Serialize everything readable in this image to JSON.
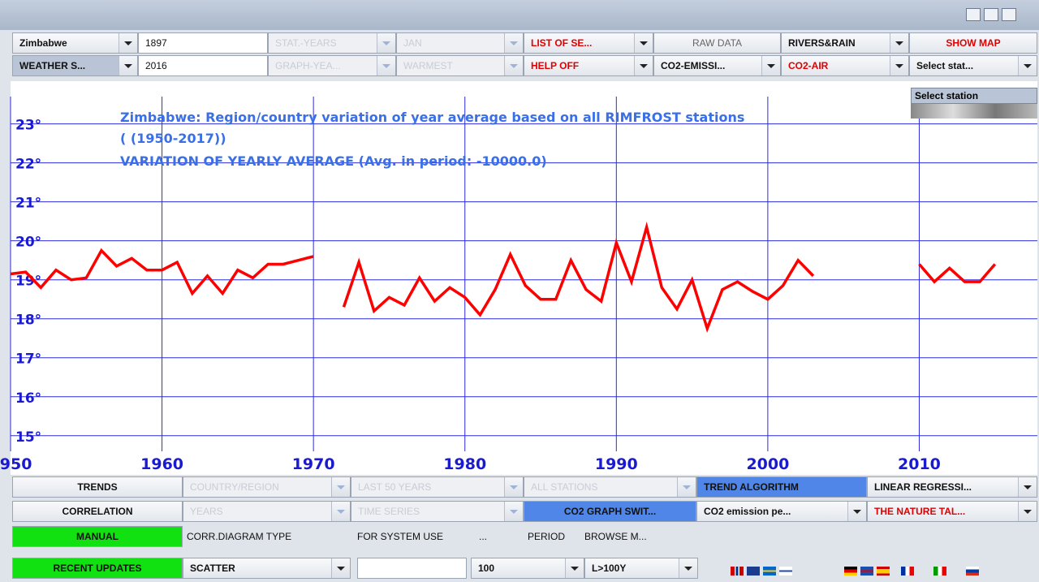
{
  "toolbar": {
    "rows": [
      [
        "Zimbabwe",
        "1897",
        "STAT.-YEARS",
        "JAN",
        "LIST OF SE...",
        "RAW DATA",
        "RIVERS&RAIN",
        "SHOW MAP"
      ],
      [
        "WEATHER S...",
        "2016",
        "GRAPH-YEA...",
        "WARMEST",
        "HELP OFF",
        "CO2-EMISSI...",
        "CO2-AIR",
        "Select stat..."
      ]
    ]
  },
  "popup": "Select station",
  "bottom_panel": {
    "rows": [
      [
        "TRENDS",
        "COUNTRY/REGION",
        "LAST 50 YEARS",
        "ALL STATIONS",
        "TREND ALGORITHM",
        "LINEAR REGRESSI..."
      ],
      [
        "CORRELATION",
        "YEARS",
        "TIME SERIES",
        "CO2 GRAPH SWIT...",
        "CO2 emission pe...",
        "THE NATURE TAL..."
      ],
      [
        "MANUAL",
        "CORR.DIAGRAM TYPE",
        "FOR SYSTEM USE",
        "...",
        "PERIOD",
        "BROWSE M..."
      ],
      [
        "RECENT UPDATES",
        "SCATTER",
        "100",
        "L>100Y"
      ]
    ]
  },
  "chart_data": {
    "type": "line",
    "title": "Zimbabwe: Region/country variation of year average based on all RIMFROST stations",
    "subtitle": "( (1950-2017))",
    "annotation": "VARIATION OF YEARLY AVERAGE (Avg. in period: -10000.0)",
    "x": [
      1950,
      1951,
      1952,
      1953,
      1954,
      1955,
      1956,
      1957,
      1958,
      1959,
      1960,
      1961,
      1962,
      1963,
      1964,
      1965,
      1966,
      1967,
      1968,
      1969,
      1970,
      1971,
      1972,
      1973,
      1974,
      1975,
      1976,
      1977,
      1978,
      1979,
      1980,
      1981,
      1982,
      1983,
      1984,
      1985,
      1986,
      1987,
      1988,
      1989,
      1990,
      1991,
      1992,
      1993,
      1994,
      1995,
      1996,
      1997,
      1998,
      1999,
      2000,
      2001,
      2002,
      2003,
      2004,
      2005,
      2006,
      2007,
      2008,
      2009,
      2010,
      2011,
      2012,
      2013,
      2014,
      2015
    ],
    "series": [
      {
        "color": "#ff0000",
        "values": [
          19.15,
          19.2,
          18.8,
          19.25,
          19.0,
          19.05,
          19.75,
          19.35,
          19.55,
          19.25,
          19.25,
          19.45,
          18.65,
          19.1,
          18.65,
          19.25,
          19.05,
          19.4,
          19.4,
          19.5,
          19.6,
          null,
          18.3,
          19.45,
          18.2,
          18.55,
          18.35,
          19.05,
          18.45,
          18.8,
          18.55,
          18.1,
          18.75,
          19.65,
          18.85,
          18.5,
          18.5,
          19.5,
          18.75,
          18.45,
          19.95,
          18.95,
          20.35,
          18.8,
          18.25,
          19.0,
          17.75,
          18.75,
          18.95,
          18.7,
          18.5,
          18.85,
          19.5,
          19.1,
          null,
          null,
          null,
          null,
          null,
          null,
          19.4,
          18.95,
          19.3,
          18.95,
          18.95,
          19.4
        ]
      }
    ],
    "xlim": [
      1950,
      2017.8
    ],
    "xticks": [
      1950,
      1960,
      1970,
      1980,
      1990,
      2000,
      2010
    ],
    "ylim": [
      14.6,
      23.7
    ],
    "yticks": [
      {
        "value": 15,
        "label": "15°"
      },
      {
        "value": 16,
        "label": "16°"
      },
      {
        "value": 17,
        "label": "17°"
      },
      {
        "value": 18,
        "label": "18°"
      },
      {
        "value": 19,
        "label": "19°"
      },
      {
        "value": 20,
        "label": "20°"
      },
      {
        "value": 21,
        "label": "21°"
      },
      {
        "value": 22,
        "label": "22°"
      },
      {
        "value": 23,
        "label": "23°"
      }
    ],
    "grid": true,
    "grid_color": "#2b2bdc"
  }
}
